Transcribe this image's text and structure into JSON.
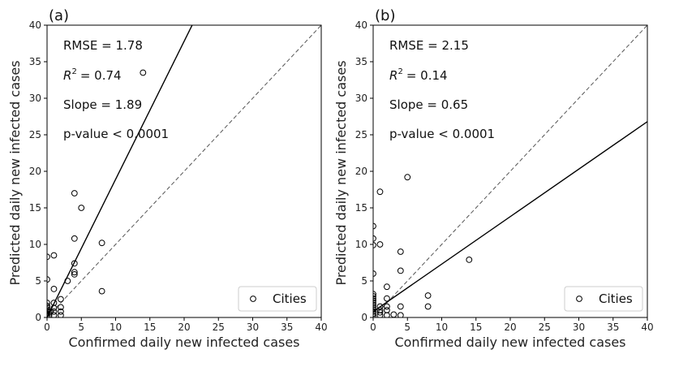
{
  "chart_data": [
    {
      "type": "scatter",
      "panel_label": "(a)",
      "xlabel": "Confirmed daily new infected cases",
      "ylabel": "Predicted daily new infected cases",
      "xlim": [
        0,
        40
      ],
      "ylim": [
        0,
        40
      ],
      "xticks": [
        0,
        5,
        10,
        15,
        20,
        25,
        30,
        35,
        40
      ],
      "yticks": [
        0,
        5,
        10,
        15,
        20,
        25,
        30,
        35,
        40
      ],
      "grid": false,
      "legend": {
        "placement": "bottom-right",
        "entries": [
          "Cities"
        ]
      },
      "annotations": {
        "rmse": "RMSE = 1.78",
        "r2": "= 0.74",
        "slope": "Slope = 1.89",
        "pvalue": "p-value < 0.0001"
      },
      "fit_line": {
        "slope": 1.89,
        "intercept": 0
      },
      "identity_line": {
        "slope": 1,
        "intercept": 0
      },
      "series": [
        {
          "name": "Cities",
          "points": [
            [
              0,
              0.2
            ],
            [
              0,
              0.5
            ],
            [
              0,
              0.8
            ],
            [
              0,
              1.1
            ],
            [
              0,
              1.4
            ],
            [
              0,
              1.6
            ],
            [
              0,
              2.0
            ],
            [
              0,
              5.2
            ],
            [
              0,
              8.3
            ],
            [
              0.3,
              0.3
            ],
            [
              0.5,
              0.8
            ],
            [
              1,
              0.3
            ],
            [
              1,
              0.8
            ],
            [
              1,
              1.3
            ],
            [
              1,
              2.0
            ],
            [
              1,
              3.9
            ],
            [
              1,
              8.5
            ],
            [
              2,
              0.3
            ],
            [
              2,
              0.8
            ],
            [
              2,
              1.4
            ],
            [
              2,
              2.5
            ],
            [
              3,
              5.0
            ],
            [
              4,
              5.9
            ],
            [
              4,
              6.2
            ],
            [
              4,
              7.4
            ],
            [
              4,
              10.8
            ],
            [
              4,
              17.0
            ],
            [
              5,
              15.0
            ],
            [
              8,
              3.6
            ],
            [
              8,
              10.2
            ],
            [
              14,
              33.5
            ]
          ]
        }
      ]
    },
    {
      "type": "scatter",
      "panel_label": "(b)",
      "xlabel": "Confirmed daily new infected cases",
      "ylabel": "Predicted daily new infected cases",
      "xlim": [
        0,
        40
      ],
      "ylim": [
        0,
        40
      ],
      "xticks": [
        0,
        5,
        10,
        15,
        20,
        25,
        30,
        35,
        40
      ],
      "yticks": [
        0,
        5,
        10,
        15,
        20,
        25,
        30,
        35,
        40
      ],
      "grid": false,
      "legend": {
        "placement": "bottom-right",
        "entries": [
          "Cities"
        ]
      },
      "annotations": {
        "rmse": "RMSE = 2.15",
        "r2": "= 0.14",
        "slope": "Slope = 0.65",
        "pvalue": "p-value < 0.0001"
      },
      "fit_line": {
        "slope": 0.65,
        "intercept": 0.8
      },
      "identity_line": {
        "slope": 1,
        "intercept": 0
      },
      "series": [
        {
          "name": "Cities",
          "points": [
            [
              0,
              0.2
            ],
            [
              0,
              0.5
            ],
            [
              0,
              0.8
            ],
            [
              0,
              1.1
            ],
            [
              0,
              1.4
            ],
            [
              0,
              1.7
            ],
            [
              0,
              2.0
            ],
            [
              0,
              2.3
            ],
            [
              0,
              2.6
            ],
            [
              0,
              2.9
            ],
            [
              0,
              3.2
            ],
            [
              0,
              6.0
            ],
            [
              0,
              9.9
            ],
            [
              0,
              10.8
            ],
            [
              0,
              12.5
            ],
            [
              1,
              0.3
            ],
            [
              1,
              0.7
            ],
            [
              1,
              1.0
            ],
            [
              1,
              1.5
            ],
            [
              1,
              10.0
            ],
            [
              1,
              17.2
            ],
            [
              2,
              0.3
            ],
            [
              2,
              1.0
            ],
            [
              2,
              1.5
            ],
            [
              2,
              2.6
            ],
            [
              2,
              4.2
            ],
            [
              3,
              0.4
            ],
            [
              4,
              0.3
            ],
            [
              4,
              1.5
            ],
            [
              4,
              6.4
            ],
            [
              4,
              9.0
            ],
            [
              5,
              19.2
            ],
            [
              8,
              1.5
            ],
            [
              8,
              3.0
            ],
            [
              14,
              7.9
            ]
          ]
        }
      ]
    }
  ]
}
